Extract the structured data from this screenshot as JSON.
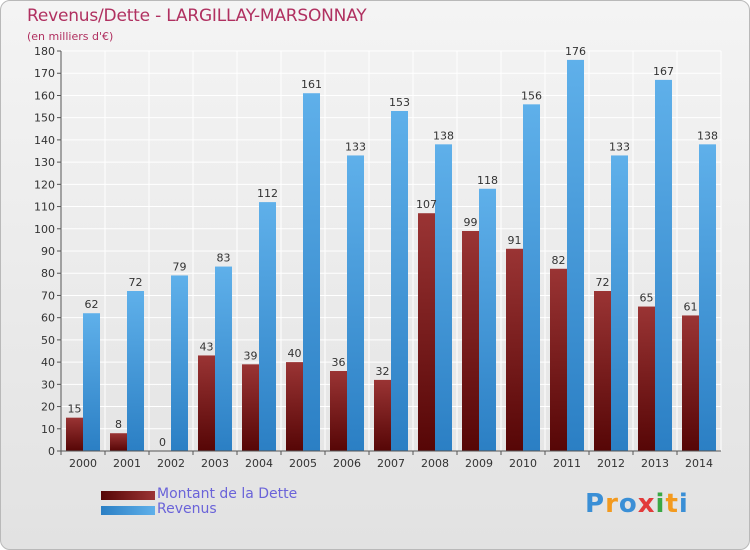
{
  "chart_data": {
    "type": "bar",
    "title": "Revenus/Dette - LARGILLAY-MARSONNAY",
    "subtitle": "(en milliers d'€)",
    "categories": [
      "2000",
      "2001",
      "2002",
      "2003",
      "2004",
      "2005",
      "2006",
      "2007",
      "2008",
      "2009",
      "2010",
      "2011",
      "2012",
      "2013",
      "2014"
    ],
    "series": [
      {
        "name": "Montant de la Dette",
        "color": "#7a1c1c",
        "values": [
          15,
          8,
          0,
          43,
          39,
          40,
          36,
          32,
          107,
          99,
          91,
          82,
          72,
          65,
          61
        ]
      },
      {
        "name": "Revenus",
        "color": "#3f9ad8",
        "values": [
          62,
          72,
          79,
          83,
          112,
          161,
          133,
          153,
          138,
          118,
          156,
          176,
          133,
          167,
          138
        ]
      }
    ],
    "ylim": [
      0,
      180
    ],
    "ytick_step": 10,
    "grid": true,
    "legend": "bottom-left"
  },
  "legend": {
    "dette_label": "Montant de la Dette",
    "revenus_label": "Revenus"
  },
  "logo": {
    "letters": [
      "P",
      "r",
      "o",
      "x",
      "i",
      "t",
      "i"
    ],
    "colors": [
      "#3a8fd6",
      "#f39a1e",
      "#3a8fd6",
      "#e23b3b",
      "#3aa845",
      "#f39a1e",
      "#3a8fd6"
    ]
  }
}
